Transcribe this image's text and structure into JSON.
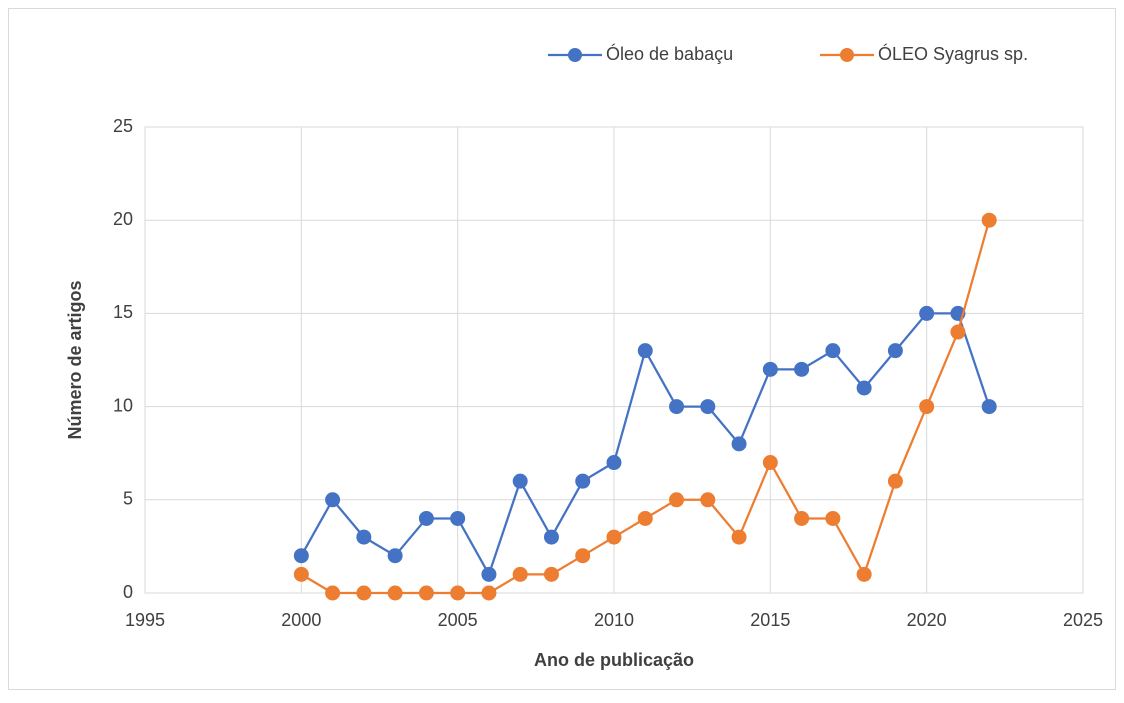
{
  "chart_data": {
    "type": "line",
    "x": [
      2000,
      2001,
      2002,
      2003,
      2004,
      2005,
      2006,
      2007,
      2008,
      2009,
      2010,
      2011,
      2012,
      2013,
      2014,
      2015,
      2016,
      2017,
      2018,
      2019,
      2020,
      2021,
      2022
    ],
    "series": [
      {
        "name": "Óleo de babaçu",
        "color": "#4472c4",
        "values": [
          2,
          5,
          3,
          2,
          4,
          4,
          1,
          6,
          3,
          6,
          7,
          13,
          10,
          10,
          8,
          12,
          12,
          13,
          11,
          13,
          15,
          15,
          10
        ]
      },
      {
        "name": "ÓLEO Syagrus sp.",
        "color": "#ed7d31",
        "values": [
          1,
          0,
          0,
          0,
          0,
          0,
          0,
          1,
          1,
          2,
          3,
          4,
          5,
          5,
          3,
          7,
          4,
          4,
          1,
          6,
          10,
          14,
          20
        ]
      }
    ],
    "xlabel": "Ano de publicação",
    "ylabel": "Número de artigos",
    "xlim": [
      1995,
      2025
    ],
    "xticks": [
      1995,
      2000,
      2005,
      2010,
      2015,
      2020,
      2025
    ],
    "ylim": [
      0,
      25
    ],
    "yticks": [
      0,
      5,
      10,
      15,
      20,
      25
    ],
    "grid": true,
    "legend": "top"
  }
}
